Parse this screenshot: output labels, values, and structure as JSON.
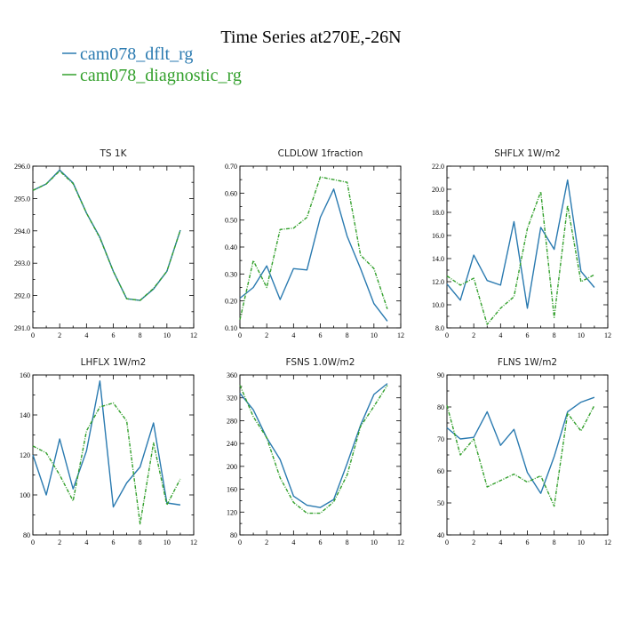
{
  "figure": {
    "title": "Time Series at270E,-26N",
    "legend": [
      {
        "name": "cam078_dflt_rg",
        "color": "#2a7ab0",
        "dash": ""
      },
      {
        "name": "cam078_diagnostic_rg",
        "color": "#33a02c",
        "dash": "4,1.5,1,1.5"
      }
    ]
  },
  "chart_data": [
    {
      "type": "line",
      "title": "TS   1K",
      "xlim": [
        0,
        12
      ],
      "ylim": [
        291.0,
        296.0
      ],
      "x_ticks": [
        0,
        2,
        4,
        6,
        8,
        10,
        12
      ],
      "y_ticks": [
        "291.0",
        "292.0",
        "293.0",
        "294.0",
        "295.0",
        "296.0"
      ],
      "x": [
        0,
        1,
        2,
        3,
        4,
        5,
        6,
        7,
        8,
        9,
        10,
        11
      ],
      "series": [
        {
          "name": "cam078_dflt_rg",
          "values": [
            295.25,
            295.45,
            295.88,
            295.48,
            294.55,
            293.8,
            292.75,
            291.9,
            291.85,
            292.2,
            292.75,
            294.02
          ]
        },
        {
          "name": "cam078_diagnostic_rg",
          "values": [
            295.25,
            295.45,
            295.85,
            295.46,
            294.55,
            293.78,
            292.75,
            291.9,
            291.85,
            292.22,
            292.75,
            294.02
          ]
        }
      ]
    },
    {
      "type": "line",
      "title": "CLDLOW   1fraction",
      "xlim": [
        0,
        12
      ],
      "ylim": [
        0.1,
        0.7
      ],
      "x_ticks": [
        0,
        2,
        4,
        6,
        8,
        10,
        12
      ],
      "y_ticks": [
        "0.10",
        "0.20",
        "0.30",
        "0.40",
        "0.50",
        "0.60",
        "0.70"
      ],
      "x": [
        0,
        1,
        2,
        3,
        4,
        5,
        6,
        7,
        8,
        9,
        10,
        11
      ],
      "series": [
        {
          "name": "cam078_dflt_rg",
          "values": [
            0.21,
            0.25,
            0.33,
            0.205,
            0.32,
            0.315,
            0.51,
            0.615,
            0.44,
            0.32,
            0.19,
            0.125
          ]
        },
        {
          "name": "cam078_diagnostic_rg",
          "values": [
            0.13,
            0.35,
            0.25,
            0.465,
            0.47,
            0.51,
            0.66,
            0.65,
            0.64,
            0.37,
            0.32,
            0.17
          ]
        }
      ]
    },
    {
      "type": "line",
      "title": "SHFLX   1W/m2",
      "xlim": [
        0,
        12
      ],
      "ylim": [
        8.0,
        22.0
      ],
      "x_ticks": [
        0,
        2,
        4,
        6,
        8,
        10,
        12
      ],
      "y_ticks": [
        "8.0",
        "10.0",
        "12.0",
        "14.0",
        "16.0",
        "18.0",
        "20.0",
        "22.0"
      ],
      "x": [
        0,
        1,
        2,
        3,
        4,
        5,
        6,
        7,
        8,
        9,
        10,
        11
      ],
      "series": [
        {
          "name": "cam078_dflt_rg",
          "values": [
            11.8,
            10.4,
            14.3,
            12.1,
            11.7,
            17.2,
            9.7,
            16.7,
            14.8,
            20.8,
            12.9,
            11.5
          ]
        },
        {
          "name": "cam078_diagnostic_rg",
          "values": [
            12.5,
            11.7,
            12.3,
            8.3,
            9.7,
            10.7,
            16.6,
            19.8,
            8.9,
            18.6,
            12.0,
            12.6
          ]
        }
      ]
    },
    {
      "type": "line",
      "title": "LHFLX   1W/m2",
      "xlim": [
        0,
        12
      ],
      "ylim": [
        80,
        160
      ],
      "x_ticks": [
        0,
        2,
        4,
        6,
        8,
        10,
        12
      ],
      "y_ticks": [
        "80",
        "100",
        "120",
        "140",
        "160"
      ],
      "x": [
        0,
        1,
        2,
        3,
        4,
        5,
        6,
        7,
        8,
        9,
        10,
        11
      ],
      "series": [
        {
          "name": "cam078_dflt_rg",
          "values": [
            120,
            100,
            128,
            103,
            122,
            157,
            94,
            106,
            114,
            136,
            96,
            95
          ]
        },
        {
          "name": "cam078_diagnostic_rg",
          "values": [
            124.5,
            121,
            110,
            97,
            132,
            144,
            146,
            137,
            85.5,
            126,
            95,
            108
          ]
        }
      ]
    },
    {
      "type": "line",
      "title": "FSNS   1.0W/m2",
      "xlim": [
        0,
        12
      ],
      "ylim": [
        80,
        360
      ],
      "x_ticks": [
        0,
        2,
        4,
        6,
        8,
        10,
        12
      ],
      "y_ticks": [
        "80",
        "120",
        "160",
        "200",
        "240",
        "280",
        "320",
        "360"
      ],
      "x": [
        0,
        1,
        2,
        3,
        4,
        5,
        6,
        7,
        8,
        9,
        10,
        11
      ],
      "series": [
        {
          "name": "cam078_dflt_rg",
          "values": [
            328,
            299,
            250,
            212,
            148,
            132,
            128,
            142,
            205,
            272,
            326,
            345
          ]
        },
        {
          "name": "cam078_diagnostic_rg",
          "values": [
            342,
            287,
            250,
            180,
            137,
            118,
            118,
            138,
            185,
            270,
            305,
            342
          ]
        }
      ]
    },
    {
      "type": "line",
      "title": "FLNS   1W/m2",
      "xlim": [
        0,
        12
      ],
      "ylim": [
        40,
        90
      ],
      "x_ticks": [
        0,
        2,
        4,
        6,
        8,
        10,
        12
      ],
      "y_ticks": [
        "40",
        "50",
        "60",
        "70",
        "80",
        "90"
      ],
      "x": [
        0,
        1,
        2,
        3,
        4,
        5,
        6,
        7,
        8,
        9,
        10,
        11
      ],
      "series": [
        {
          "name": "cam078_dflt_rg",
          "values": [
            73.5,
            70,
            70.5,
            78.5,
            68,
            73,
            59.5,
            53,
            64.5,
            78.5,
            81.5,
            83
          ]
        },
        {
          "name": "cam078_diagnostic_rg",
          "values": [
            80.5,
            65,
            70,
            55,
            57,
            59,
            56.5,
            58.5,
            49,
            78,
            72.5,
            80.5
          ]
        }
      ]
    }
  ]
}
